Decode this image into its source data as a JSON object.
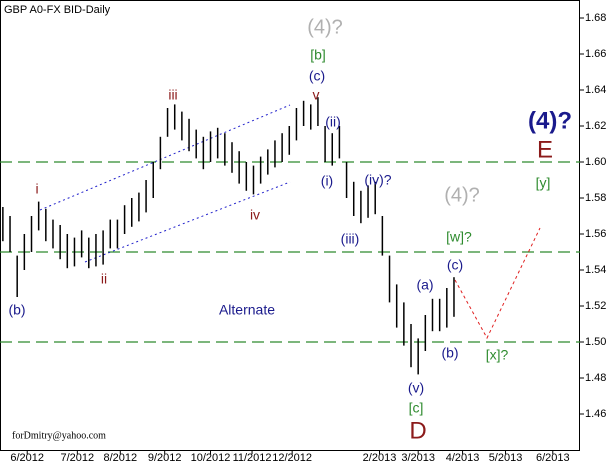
{
  "chart_data": {
    "type": "hl-bars",
    "title": "GBP A0-FX BID-Daily",
    "bar_color": "#000000",
    "xlim": [
      0,
      405
    ],
    "ylim": [
      1.44,
      1.69
    ],
    "xticks": [
      {
        "value": 19,
        "label": "6/2012"
      },
      {
        "value": 54,
        "label": "7/2012"
      },
      {
        "value": 84,
        "label": "8/2012"
      },
      {
        "value": 115,
        "label": "9/2012"
      },
      {
        "value": 147,
        "label": "10/2012"
      },
      {
        "value": 176,
        "label": "11/2012"
      },
      {
        "value": 204,
        "label": "12/2012"
      },
      {
        "value": 265,
        "label": "2/2013"
      },
      {
        "value": 292,
        "label": "3/2013"
      },
      {
        "value": 323,
        "label": "4/2013"
      },
      {
        "value": 353,
        "label": "5/2013"
      },
      {
        "value": 386,
        "label": "6/2013"
      }
    ],
    "yticks": [
      1.46,
      1.48,
      {
        "value": 1.5,
        "label": "1.50"
      },
      1.52,
      1.54,
      1.56,
      1.58,
      {
        "value": 1.6,
        "label": "1.60"
      },
      1.62,
      1.64,
      1.66,
      1.68
    ],
    "levels": {
      "color": "#2e8b2e",
      "values": [
        1.6,
        1.55,
        1.5
      ]
    },
    "x": [
      2,
      7,
      12,
      17,
      22,
      27,
      32,
      37,
      42,
      47,
      52,
      57,
      62,
      67,
      72,
      77,
      82,
      87,
      92,
      97,
      102,
      107,
      112,
      117,
      122,
      127,
      132,
      137,
      142,
      147,
      152,
      157,
      162,
      167,
      172,
      177,
      182,
      187,
      192,
      197,
      202,
      207,
      212,
      217,
      222,
      227,
      232,
      237,
      242,
      247,
      252,
      257,
      262,
      267,
      272,
      277,
      282,
      287,
      292,
      297,
      302,
      307,
      312,
      317
    ],
    "high": [
      1.575,
      1.57,
      1.548,
      1.56,
      1.57,
      1.578,
      1.574,
      1.568,
      1.565,
      1.56,
      1.558,
      1.562,
      1.558,
      1.56,
      1.562,
      1.568,
      1.568,
      1.576,
      1.58,
      1.583,
      1.59,
      1.6,
      1.614,
      1.63,
      1.632,
      1.628,
      1.624,
      1.618,
      1.614,
      1.617,
      1.619,
      1.616,
      1.611,
      1.606,
      1.6,
      1.598,
      1.603,
      1.607,
      1.612,
      1.616,
      1.62,
      1.63,
      1.634,
      1.632,
      1.636,
      1.62,
      1.616,
      1.62,
      1.6,
      1.589,
      1.584,
      1.587,
      1.589,
      1.57,
      1.548,
      1.532,
      1.522,
      1.51,
      1.502,
      1.515,
      1.524,
      1.524,
      1.53,
      1.536
    ],
    "low": [
      1.556,
      1.55,
      1.525,
      1.54,
      1.55,
      1.562,
      1.556,
      1.552,
      1.546,
      1.541,
      1.542,
      1.547,
      1.541,
      1.542,
      1.543,
      1.552,
      1.552,
      1.56,
      1.564,
      1.567,
      1.572,
      1.58,
      1.596,
      1.614,
      1.618,
      1.612,
      1.606,
      1.602,
      1.596,
      1.6,
      1.602,
      1.598,
      1.594,
      1.588,
      1.584,
      1.582,
      1.588,
      1.593,
      1.597,
      1.6,
      1.604,
      1.612,
      1.62,
      1.618,
      1.62,
      1.6,
      1.598,
      1.602,
      1.58,
      1.57,
      1.566,
      1.569,
      1.571,
      1.548,
      1.522,
      1.508,
      1.498,
      1.486,
      1.482,
      1.495,
      1.506,
      1.506,
      1.508,
      1.514
    ],
    "annotations": [
      "(4)?",
      "[b]",
      "(c)",
      "v",
      "iii",
      "(ii)",
      "i",
      "(i)",
      "(iv)?",
      "iv",
      "(iii)",
      "ii",
      "(b)",
      "Alternate",
      "(4)?",
      "[w]?",
      "(c)",
      "(a)",
      "(b)",
      "[x]?",
      "(v)",
      "[c]",
      "D",
      "(4)?",
      "E",
      "[y]",
      "forDmitry@yahoo.com"
    ]
  }
}
